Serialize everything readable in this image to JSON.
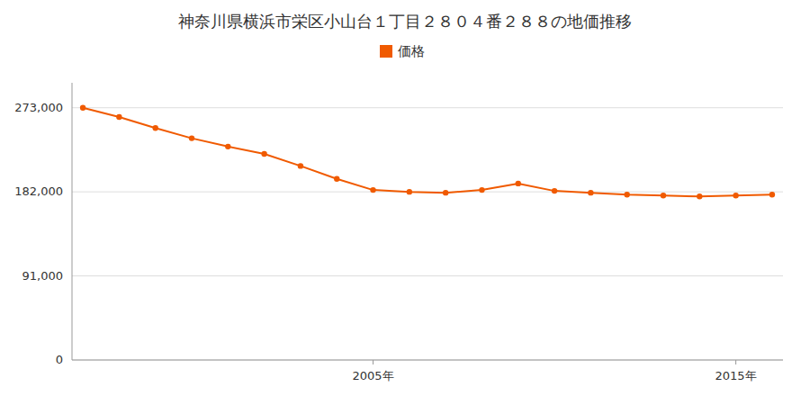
{
  "chart_data": {
    "type": "line",
    "title": "神奈川県横浜市栄区小山台１丁目２８０４番２８８の地価推移",
    "x": [
      1997,
      1998,
      1999,
      2000,
      2001,
      2002,
      2003,
      2004,
      2005,
      2006,
      2007,
      2008,
      2009,
      2010,
      2011,
      2012,
      2013,
      2014,
      2015,
      2016
    ],
    "series": [
      {
        "name": "価格",
        "color": "#F05A00",
        "marker": "circle",
        "values": [
          273000,
          263000,
          251000,
          240000,
          231000,
          223000,
          210000,
          196000,
          184000,
          182000,
          181000,
          184000,
          191000,
          183000,
          181000,
          179000,
          178000,
          177000,
          178000,
          179000
        ]
      }
    ],
    "xlim": [
      1996.7,
      2016.3
    ],
    "xticks": [
      {
        "value": 2005,
        "label": "2005年"
      },
      {
        "value": 2015,
        "label": "2015年"
      }
    ],
    "ylim": [
      0,
      300000
    ],
    "yticks": [
      0,
      {
        "value": 91000,
        "label": "91,000"
      },
      {
        "value": 182000,
        "label": "182,000"
      },
      {
        "value": 273000,
        "label": "273,000"
      }
    ],
    "grid": true,
    "legend": "top"
  }
}
